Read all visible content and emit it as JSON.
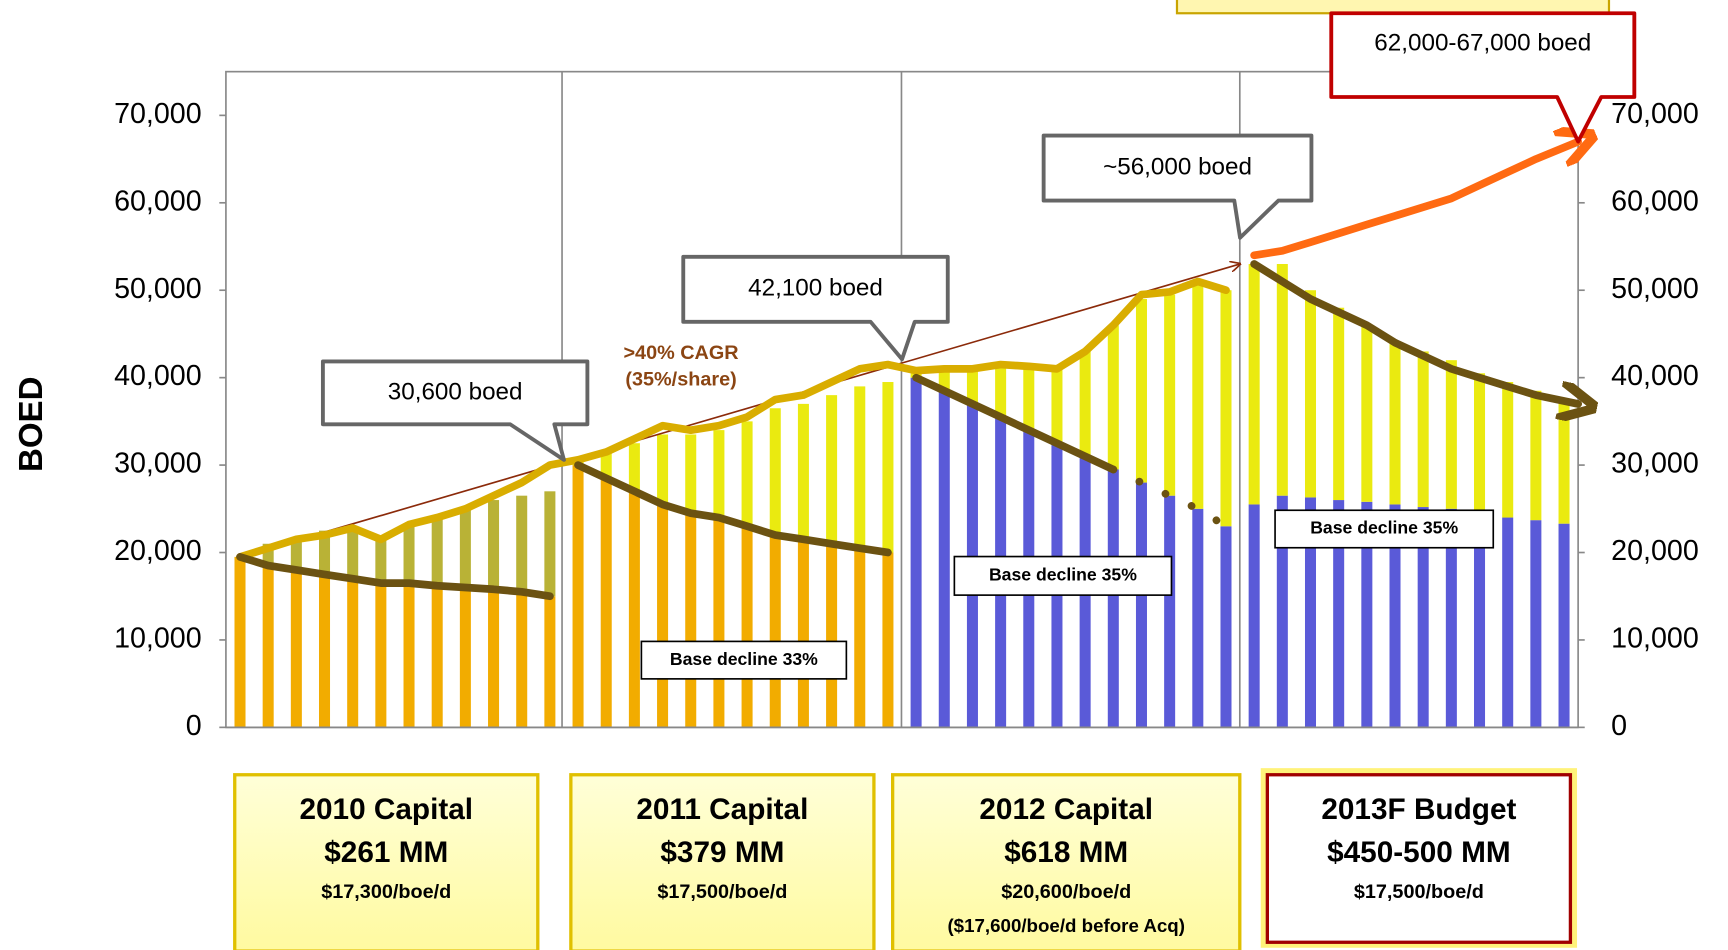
{
  "chart_data": {
    "type": "bar",
    "y_label": "BOED",
    "categories": [
      null,
      null,
      null,
      null,
      null,
      null,
      null,
      null,
      null,
      null,
      null,
      null,
      null,
      null,
      null,
      null,
      null,
      null,
      null,
      null,
      null,
      null,
      null,
      null,
      null,
      null,
      null,
      null,
      null,
      null,
      null,
      null,
      null,
      null,
      null,
      null,
      null,
      null,
      null,
      null,
      null,
      null,
      null,
      null,
      null,
      null,
      null,
      null
    ],
    "series": [
      {
        "color": "#f2ac00",
        "values": [
          19500,
          18500,
          18000,
          17500,
          17000,
          16500,
          16500,
          16200,
          16000,
          15800,
          15500,
          15000,
          30000,
          28500,
          27000,
          25500,
          24500,
          24000,
          23000,
          22000,
          21500,
          21000,
          20500,
          20000,
          null,
          null,
          null,
          null,
          null,
          null,
          null,
          null,
          null,
          null,
          null,
          null,
          null,
          null,
          null,
          null,
          null,
          null,
          null,
          null,
          null,
          null,
          null,
          null
        ]
      },
      {
        "color": "#5a5ad8",
        "values": [
          null,
          null,
          null,
          null,
          null,
          null,
          null,
          null,
          null,
          null,
          null,
          null,
          null,
          null,
          null,
          null,
          null,
          null,
          null,
          null,
          null,
          null,
          null,
          null,
          40000,
          38500,
          37000,
          35500,
          34000,
          32500,
          31000,
          29500,
          28000,
          26500,
          25000,
          23000,
          25500,
          26500,
          26300,
          26000,
          25800,
          25500,
          25200,
          25000,
          24500,
          24000,
          23700,
          23300
        ]
      },
      {
        "color": "#b9b236",
        "values": [
          0,
          2500,
          3500,
          5000,
          6000,
          5000,
          6500,
          7800,
          9000,
          10200,
          11000,
          12000,
          null,
          null,
          null,
          null,
          null,
          null,
          null,
          null,
          null,
          null,
          null,
          null,
          null,
          null,
          null,
          null,
          null,
          null,
          null,
          null,
          null,
          null,
          null,
          null,
          null,
          null,
          null,
          null,
          null,
          null,
          null,
          null,
          null,
          null,
          null,
          null
        ]
      },
      {
        "color": "#eaea10",
        "values": [
          null,
          null,
          null,
          null,
          null,
          null,
          null,
          null,
          null,
          null,
          null,
          null,
          500,
          3000,
          5500,
          8000,
          9000,
          10000,
          12000,
          14500,
          15500,
          17000,
          18500,
          19500,
          500,
          2500,
          4000,
          6000,
          7500,
          8500,
          12000,
          16500,
          21000,
          23000,
          26000,
          27000,
          27500,
          26500,
          23700,
          22000,
          20200,
          18500,
          17800,
          17000,
          16000,
          15500,
          14800,
          14200
        ]
      }
    ],
    "lines": [
      {
        "color": "#8b2a0a",
        "style": "thin",
        "arrow": true,
        "x": [
          0,
          35.5
        ],
        "values": [
          19500,
          53000
        ]
      },
      {
        "color": "#d9ad00",
        "style": "thick",
        "x": [
          0,
          1,
          2,
          3,
          4,
          5,
          6,
          7,
          8,
          9,
          10,
          11,
          12,
          13,
          14,
          15,
          16,
          17,
          18,
          19,
          20,
          21,
          22,
          23,
          24,
          25,
          26,
          27,
          28,
          29,
          30,
          31,
          32,
          33,
          34,
          35
        ],
        "values": [
          19500,
          20500,
          21500,
          22000,
          22800,
          21500,
          23200,
          24000,
          25000,
          26500,
          28000,
          30000,
          30600,
          31500,
          33000,
          34500,
          34000,
          34500,
          35500,
          37500,
          38000,
          39500,
          41000,
          41500,
          40800,
          41000,
          41000,
          41500,
          41300,
          41000,
          43000,
          46000,
          49500,
          49800,
          51000,
          50000
        ]
      },
      {
        "color": "#6b5212",
        "style": "thick",
        "x": [
          0,
          1,
          2,
          3,
          4,
          5,
          6,
          7,
          8,
          9,
          10,
          11
        ],
        "values": [
          19500,
          18500,
          18000,
          17500,
          17000,
          16500,
          16500,
          16200,
          16000,
          15800,
          15500,
          15000
        ]
      },
      {
        "color": "#6b5212",
        "style": "thick",
        "x": [
          12,
          13,
          14,
          15,
          16,
          17,
          18,
          19,
          20,
          21,
          22,
          23
        ],
        "values": [
          30000,
          28500,
          27000,
          25500,
          24500,
          24000,
          23000,
          22000,
          21500,
          21000,
          20500,
          20000
        ]
      },
      {
        "color": "#6b5212",
        "style": "thick",
        "x": [
          24,
          25,
          26,
          27,
          28,
          29,
          30,
          31
        ],
        "values": [
          40000,
          38500,
          37000,
          35500,
          34000,
          32500,
          31000,
          29500
        ]
      },
      {
        "color": "#6b5212",
        "style": "dotted",
        "x": [
          31,
          32,
          33,
          34,
          35
        ],
        "values": [
          29500,
          28000,
          26500,
          25000,
          23000
        ]
      },
      {
        "color": "#6b5212",
        "style": "thick",
        "arrow": true,
        "x": [
          36,
          37,
          38,
          39,
          40,
          41,
          42,
          43,
          44,
          45,
          46,
          47.5
        ],
        "values": [
          53000,
          51000,
          49000,
          47500,
          46000,
          44000,
          42500,
          41000,
          40000,
          39000,
          38000,
          37000
        ]
      },
      {
        "color": "#ff6a12",
        "style": "thick",
        "arrow": true,
        "x": [
          36,
          37,
          38,
          39,
          40,
          41,
          42,
          43,
          44,
          45,
          46,
          47.5
        ],
        "values": [
          54000,
          54500,
          55500,
          56500,
          57500,
          58500,
          59500,
          60500,
          62000,
          63500,
          65000,
          67000
        ]
      }
    ],
    "ylim": [
      0,
      75000
    ],
    "yticks": [
      0,
      {
        "value": 10000,
        "label": "10,000"
      },
      {
        "value": 20000,
        "label": "20,000"
      },
      {
        "value": 30000,
        "label": "30,000"
      },
      {
        "value": 40000,
        "label": "40,000"
      },
      {
        "value": 50000,
        "label": "50,000"
      },
      {
        "value": 60000,
        "label": "60,000"
      },
      {
        "value": 70000,
        "label": "70,000"
      }
    ],
    "y2lim": [
      0,
      75000
    ],
    "y2ticks": [
      0,
      {
        "value": 10000,
        "label": "10,000"
      },
      {
        "value": 20000,
        "label": "20,000"
      },
      {
        "value": 30000,
        "label": "30,000"
      },
      {
        "value": 40000,
        "label": "40,000"
      },
      {
        "value": 50000,
        "label": "50,000"
      },
      {
        "value": 60000,
        "label": "60,000"
      },
      {
        "value": 70000,
        "label": "70,000"
      }
    ],
    "callouts": [
      {
        "text": "30,600 boed",
        "x": 11.5,
        "value": 30600
      },
      {
        "text": "42,100 boed",
        "x": 23.5,
        "value": 42100
      },
      {
        "text": "~56,000 boed",
        "x": 35.5,
        "value": 56000
      },
      {
        "text": "62,000-67,000 boed",
        "x": 47.5,
        "value": 67000,
        "color": "#c00000"
      }
    ],
    "growth_note": [
      ">40% CAGR",
      "(35%/share)"
    ],
    "decline_notes": [
      "Base decline 33%",
      "Base decline 35%",
      "Base decline 35%"
    ]
  },
  "capital_boxes": [
    {
      "title": "2010 Capital",
      "amount": "$261 MM",
      "rate": "$17,300/boe/d"
    },
    {
      "title": "2011 Capital",
      "amount": "$379 MM",
      "rate": "$17,500/boe/d"
    },
    {
      "title": "2012 Capital",
      "amount": "$618 MM",
      "rate": "$20,600/boe/d",
      "note": "($17,600/boe/d before Acq)"
    },
    {
      "title": "2013F Budget",
      "amount": "$450-500 MM",
      "rate": "$17,500/boe/d",
      "highlight": true
    }
  ]
}
